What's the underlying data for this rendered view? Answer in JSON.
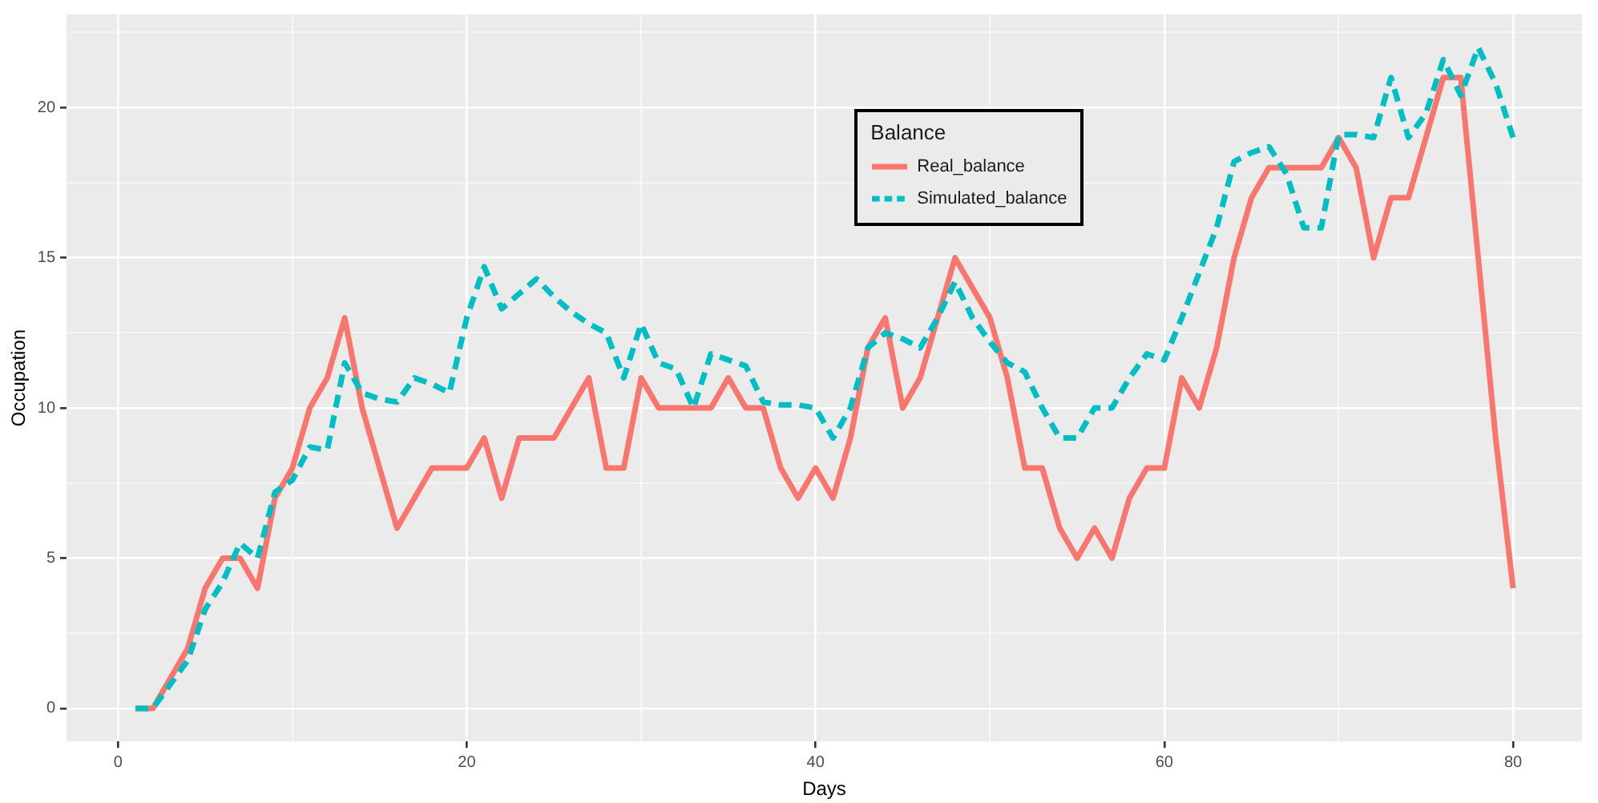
{
  "chart_data": {
    "type": "line",
    "xlabel": "Days",
    "ylabel": "Occupation",
    "legend_title": "Balance",
    "legend": "top",
    "grid": true,
    "marker": "none",
    "x": [
      1,
      2,
      3,
      4,
      5,
      6,
      7,
      8,
      9,
      10,
      11,
      12,
      13,
      14,
      15,
      16,
      17,
      18,
      19,
      20,
      21,
      22,
      23,
      24,
      25,
      26,
      27,
      28,
      29,
      30,
      31,
      32,
      33,
      34,
      35,
      36,
      37,
      38,
      39,
      40,
      41,
      42,
      43,
      44,
      45,
      46,
      47,
      48,
      49,
      50,
      51,
      52,
      53,
      54,
      55,
      56,
      57,
      58,
      59,
      60,
      61,
      62,
      63,
      64,
      65,
      66,
      67,
      68,
      69,
      70,
      71,
      72,
      73,
      74,
      75,
      76,
      77,
      78,
      79,
      80
    ],
    "xlim": [
      -2.95,
      83.95
    ],
    "xticks": [
      0,
      {
        "value": 10,
        "label": null
      },
      20,
      {
        "value": 30,
        "label": null
      },
      40,
      {
        "value": 50,
        "label": null
      },
      60,
      {
        "value": 70,
        "label": null
      },
      80
    ],
    "ylim": [
      -1.1,
      23.1
    ],
    "yticks": [
      0,
      {
        "value": 2.5,
        "label": null
      },
      5,
      {
        "value": 7.5,
        "label": null
      },
      10,
      {
        "value": 12.5,
        "label": null
      },
      15,
      {
        "value": 17.5,
        "label": null
      },
      20,
      {
        "value": 22.5,
        "label": null
      }
    ],
    "series": [
      {
        "name": "Real_balance",
        "color": "#f8766d",
        "line_style": "solid",
        "values": [
          0,
          0,
          1,
          2,
          4,
          5,
          5,
          4,
          7,
          8,
          10,
          11,
          13,
          10,
          8,
          6,
          7,
          8,
          8,
          8,
          9,
          7,
          9,
          9,
          9,
          10,
          11,
          8,
          8,
          11,
          10,
          10,
          10,
          10,
          11,
          10,
          10,
          8,
          7,
          8,
          7,
          9,
          12,
          13,
          10,
          11,
          13,
          15,
          14,
          13,
          11,
          8,
          8,
          6,
          5,
          6,
          5,
          7,
          8,
          8,
          11,
          10,
          12,
          15,
          17,
          18,
          18,
          18,
          18,
          19,
          18,
          15,
          17,
          17,
          19,
          21,
          21,
          15,
          9,
          4
        ]
      },
      {
        "name": "Simulated_balance",
        "color": "#00bfc4",
        "line_style": "dashed",
        "values": [
          0,
          0,
          0.8,
          1.6,
          3.3,
          4.2,
          5.5,
          5,
          7.2,
          7.6,
          8.7,
          8.6,
          11.5,
          10.5,
          10.3,
          10.2,
          11,
          10.8,
          10.5,
          13,
          14.7,
          13.3,
          13.8,
          14.3,
          13.7,
          13.2,
          12.8,
          12.5,
          11,
          12.8,
          11.5,
          11.3,
          10,
          11.8,
          11.6,
          11.4,
          10.2,
          10.1,
          10.1,
          10,
          9,
          10,
          12,
          12.5,
          12.3,
          12,
          13,
          14.2,
          13,
          12.2,
          11.5,
          11.2,
          10,
          9,
          9,
          10,
          10,
          11,
          11.8,
          11.6,
          13,
          14.5,
          16,
          18.2,
          18.5,
          18.7,
          17.8,
          16,
          16,
          19.1,
          19.1,
          19,
          21,
          19,
          19.8,
          21.6,
          20.4,
          22,
          20.8,
          19
        ]
      }
    ]
  }
}
